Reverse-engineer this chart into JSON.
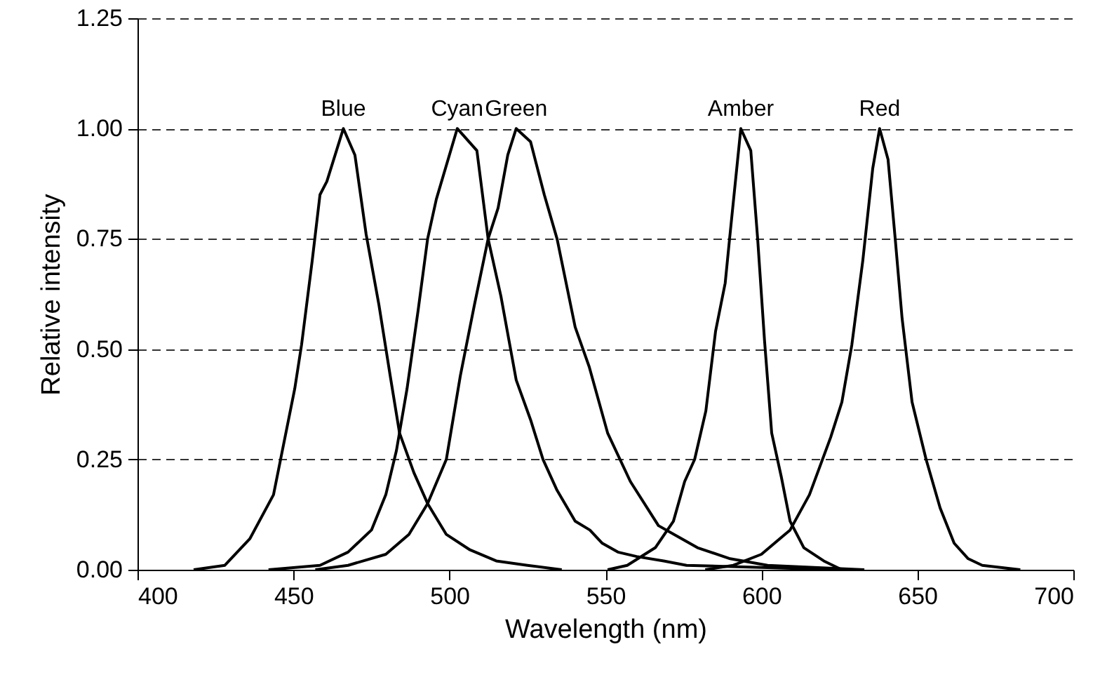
{
  "chart_data": {
    "type": "line",
    "xlabel": "Wavelength (nm)",
    "ylabel": "Relative intensity",
    "xlim": [
      400,
      700
    ],
    "xticks": [
      400,
      450,
      500,
      550,
      600,
      650,
      700
    ],
    "ylim": [
      0,
      1.25
    ],
    "yticks": [
      {
        "value": 0,
        "label": "0.00"
      },
      {
        "value": 0.25,
        "label": "0.25"
      },
      {
        "value": 0.5,
        "label": "0.50"
      },
      {
        "value": 0.75,
        "label": "0.75"
      },
      {
        "value": 1,
        "label": "1.00"
      },
      {
        "value": 1.25,
        "label": "1.25"
      }
    ],
    "grid": "y",
    "line_style": "solid",
    "marker": "none",
    "series": [
      {
        "name": "Blue",
        "color": "#000000",
        "x": [
          418,
          428,
          436,
          443.6,
          450.4,
          452.6,
          456,
          458.5,
          460.7,
          466,
          469.7,
          473.3,
          477.4,
          481,
          484,
          488.6,
          493,
          499,
          506.6,
          515,
          525,
          536
        ],
        "values": [
          0,
          0.01,
          0.07,
          0.17,
          0.41,
          0.51,
          0.7,
          0.85,
          0.88,
          1.0,
          0.94,
          0.76,
          0.6,
          0.44,
          0.31,
          0.22,
          0.15,
          0.08,
          0.045,
          0.02,
          0.01,
          0
        ]
      },
      {
        "name": "Cyan",
        "color": "#000000",
        "x": [
          442,
          458.5,
          467.5,
          475,
          479.6,
          483,
          486.4,
          490,
          493,
          495.8,
          502.5,
          508.8,
          512.4,
          516.5,
          521.4,
          526,
          530,
          534.5,
          540.3,
          545,
          549,
          554,
          560,
          568.7,
          576,
          600,
          625
        ],
        "values": [
          0,
          0.01,
          0.04,
          0.09,
          0.17,
          0.27,
          0.41,
          0.59,
          0.75,
          0.84,
          1.0,
          0.95,
          0.75,
          0.62,
          0.43,
          0.34,
          0.25,
          0.18,
          0.11,
          0.09,
          0.06,
          0.04,
          0.03,
          0.02,
          0.01,
          0.005,
          0
        ]
      },
      {
        "name": "Green",
        "color": "#000000",
        "x": [
          457,
          467.5,
          479.6,
          487,
          493,
          499,
          503.5,
          508,
          512.4,
          515.6,
          518.7,
          521.4,
          526,
          530.4,
          534.5,
          540.3,
          544.8,
          550.7,
          558,
          567,
          579.5,
          590,
          602,
          633
        ],
        "values": [
          0,
          0.01,
          0.035,
          0.08,
          0.15,
          0.25,
          0.44,
          0.6,
          0.75,
          0.82,
          0.94,
          1.0,
          0.97,
          0.85,
          0.75,
          0.55,
          0.46,
          0.31,
          0.2,
          0.1,
          0.05,
          0.025,
          0.01,
          0
        ]
      },
      {
        "name": "Amber",
        "color": "#000000",
        "x": [
          550.7,
          557,
          566,
          571.8,
          575.4,
          578.6,
          582.2,
          585.3,
          588.4,
          589.8,
          593.4,
          596.6,
          598.8,
          601,
          603.3,
          606.4,
          609.2,
          613.6,
          620,
          625.8
        ],
        "values": [
          0,
          0.01,
          0.05,
          0.11,
          0.2,
          0.25,
          0.36,
          0.54,
          0.65,
          0.75,
          1.0,
          0.95,
          0.75,
          0.52,
          0.31,
          0.21,
          0.11,
          0.05,
          0.02,
          0
        ]
      },
      {
        "name": "Red",
        "color": "#000000",
        "x": [
          582,
          591,
          600,
          609.2,
          615.4,
          622.2,
          625.8,
          629,
          631.2,
          632.5,
          635.7,
          637.9,
          640.6,
          642.9,
          645.1,
          648.3,
          652.8,
          657.3,
          661.8,
          666.3,
          670.8,
          683
        ],
        "values": [
          0,
          0.01,
          0.035,
          0.09,
          0.17,
          0.3,
          0.38,
          0.51,
          0.63,
          0.7,
          0.91,
          1.0,
          0.93,
          0.75,
          0.57,
          0.38,
          0.25,
          0.14,
          0.06,
          0.025,
          0.01,
          0
        ]
      }
    ]
  }
}
